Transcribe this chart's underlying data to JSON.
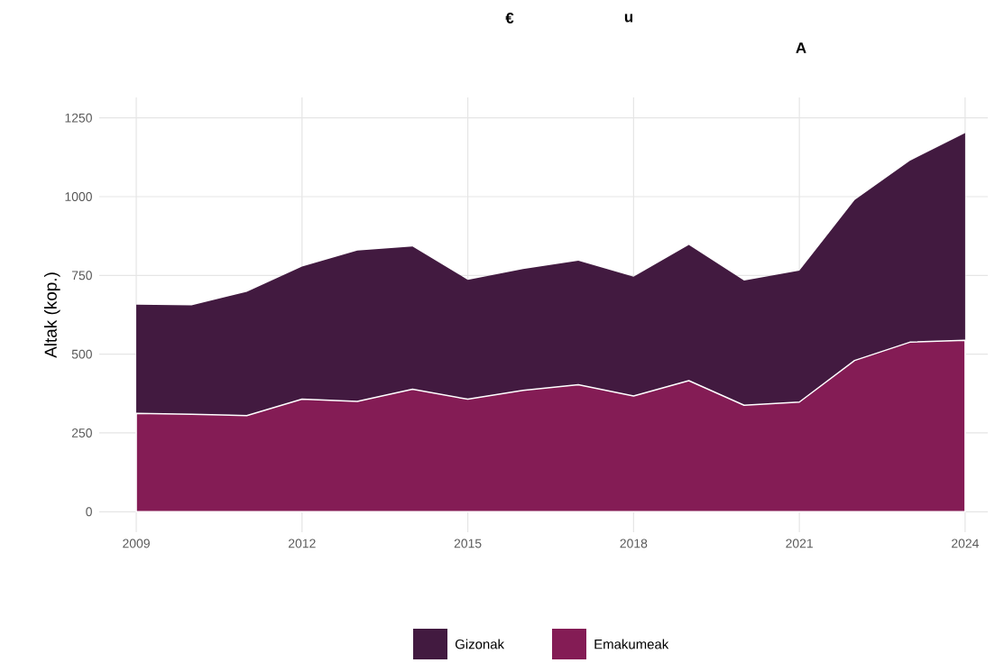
{
  "chart_data": {
    "type": "area",
    "stacked": true,
    "annotations": [
      "€",
      "u",
      "A"
    ],
    "ylabel": "Altak (kop.)",
    "x": [
      2009,
      2010,
      2011,
      2012,
      2013,
      2014,
      2015,
      2016,
      2017,
      2018,
      2019,
      2020,
      2021,
      2022,
      2023,
      2024
    ],
    "series": [
      {
        "name": "Emakumeak",
        "color": "#841c55",
        "values": [
          312,
          309,
          305,
          357,
          350,
          389,
          357,
          385,
          403,
          367,
          416,
          338,
          348,
          480,
          538,
          544
        ]
      },
      {
        "name": "Gizonak",
        "color": "#421a40",
        "values": [
          345,
          346,
          393,
          421,
          479,
          453,
          379,
          385,
          394,
          379,
          431,
          396,
          417,
          509,
          576,
          658
        ]
      }
    ],
    "xlim": [
      2008.33,
      2024.41
    ],
    "ylim": [
      -65,
      1315
    ],
    "xticks": [
      2009,
      2012,
      2015,
      2018,
      2021,
      2024
    ],
    "yticks": [
      0,
      250,
      500,
      750,
      1000,
      1250
    ],
    "grid": true,
    "legend": "bottom"
  }
}
